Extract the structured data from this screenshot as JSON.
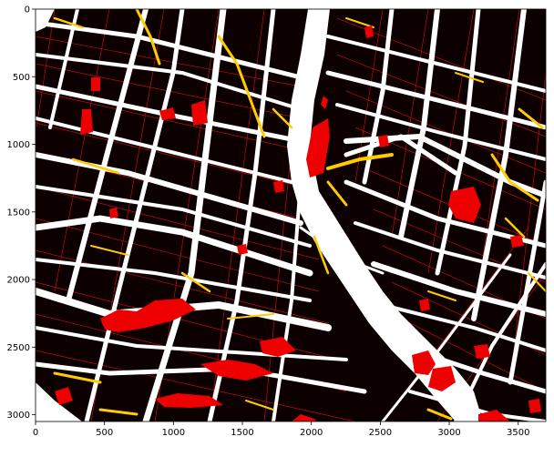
{
  "chart_data": {
    "type": "heatmap",
    "title": "",
    "xlabel": "",
    "ylabel": "",
    "xlim": [
      0,
      3700
    ],
    "ylim": [
      3050,
      0
    ],
    "x_ticks": [
      0,
      500,
      1000,
      1500,
      2000,
      2500,
      3000,
      3500
    ],
    "y_ticks": [
      0,
      500,
      1000,
      1500,
      2000,
      2500,
      3000
    ],
    "grid": false,
    "legend": "none",
    "classes": [
      {
        "color": "#0c0000"
      },
      {
        "color": "#ffffff"
      },
      {
        "color": "#ff0000"
      },
      {
        "color": "#ffcc00"
      }
    ]
  }
}
